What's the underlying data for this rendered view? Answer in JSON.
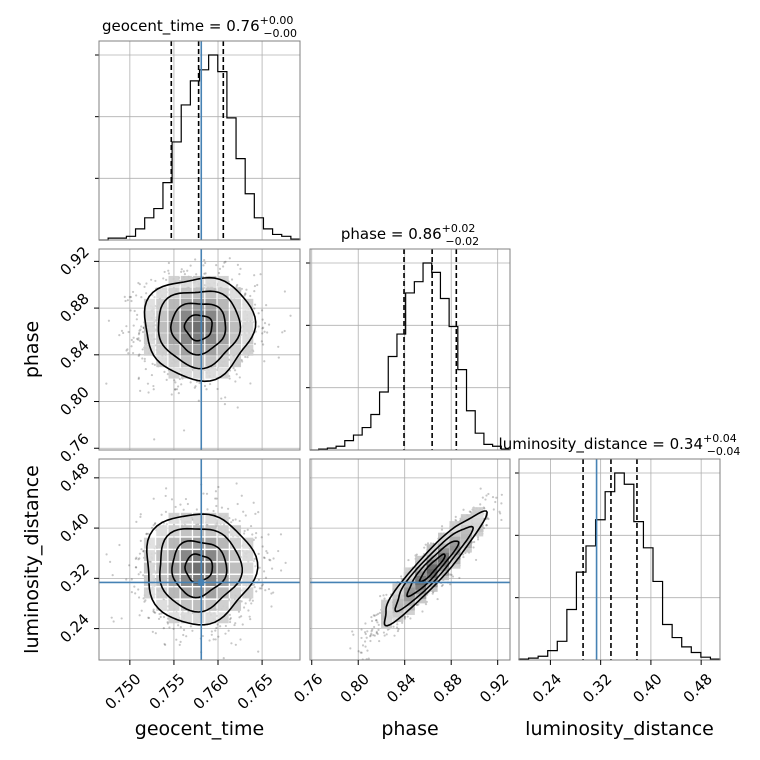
{
  "chart_data": {
    "type": "corner",
    "parameters": [
      "geocent_time",
      "phase",
      "luminosity_distance"
    ],
    "titles": {
      "geocent_time": {
        "name": "geocent_time",
        "median": "0.76",
        "plus": "+0.00",
        "minus": "−0.00"
      },
      "phase": {
        "name": "phase",
        "median": "0.86",
        "plus": "+0.02",
        "minus": "−0.02"
      },
      "luminosity_distance": {
        "name": "luminosity_distance",
        "median": "0.34",
        "plus": "+0.04",
        "minus": "−0.04"
      }
    },
    "ranges": {
      "geocent_time": [
        0.7465,
        0.7693
      ],
      "phase": [
        0.7585,
        0.9306
      ],
      "luminosity_distance": [
        0.19,
        0.51
      ]
    },
    "ticks": {
      "geocent_time": [
        0.75,
        0.755,
        0.76,
        0.765
      ],
      "geocent_time_labels": [
        "0.750",
        "0.755",
        "0.760",
        "0.765"
      ],
      "phase": [
        0.76,
        0.8,
        0.84,
        0.88,
        0.92
      ],
      "phase_labels": [
        "0.76",
        "0.80",
        "0.84",
        "0.88",
        "0.92"
      ],
      "luminosity_distance": [
        0.24,
        0.32,
        0.4,
        0.48
      ],
      "luminosity_distance_labels": [
        "0.24",
        "0.32",
        "0.40",
        "0.48"
      ]
    },
    "truths": {
      "geocent_time": 0.7581,
      "phase": null,
      "luminosity_distance": 0.3135
    },
    "quantiles": {
      "geocent_time": [
        0.7547,
        0.7578,
        0.7606
      ],
      "phase": [
        0.8394,
        0.8636,
        0.8844
      ],
      "luminosity_distance": [
        0.292,
        0.3364,
        0.3778
      ]
    },
    "histograms": {
      "geocent_time": {
        "range": [
          0.7465,
          0.7693
        ],
        "counts": [
          0,
          0.01,
          0.01,
          0.02,
          0.06,
          0.12,
          0.17,
          0.31,
          0.53,
          0.73,
          0.86,
          0.92,
          1.0,
          0.91,
          0.66,
          0.44,
          0.25,
          0.12,
          0.06,
          0.03,
          0.02,
          0.005
        ]
      },
      "phase": {
        "range": [
          0.7585,
          0.9306
        ],
        "counts": [
          0,
          0.005,
          0.01,
          0.02,
          0.05,
          0.08,
          0.12,
          0.19,
          0.31,
          0.5,
          0.62,
          0.84,
          0.9,
          1.0,
          0.95,
          0.81,
          0.66,
          0.43,
          0.21,
          0.09,
          0.03,
          0.02,
          0.005
        ]
      },
      "luminosity_distance": {
        "range": [
          0.19,
          0.51
        ],
        "counts": [
          0.005,
          0.01,
          0.02,
          0.05,
          0.1,
          0.27,
          0.47,
          0.61,
          0.75,
          0.9,
          1.0,
          0.94,
          0.74,
          0.6,
          0.42,
          0.19,
          0.12,
          0.07,
          0.04,
          0.015,
          0.005
        ]
      }
    },
    "pairs": [
      {
        "x": "geocent_time",
        "y": "phase",
        "mean": [
          0.7578,
          0.8636
        ],
        "sd": [
          0.0031,
          0.0218
        ],
        "rho": 0.0
      },
      {
        "x": "geocent_time",
        "y": "luminosity_distance",
        "mean": [
          0.7578,
          0.3364
        ],
        "sd": [
          0.0031,
          0.044
        ],
        "rho": 0.0
      },
      {
        "x": "phase",
        "y": "luminosity_distance",
        "mean": [
          0.8636,
          0.3364
        ],
        "sd": [
          0.0218,
          0.044
        ],
        "rho": 0.93
      }
    ],
    "grid": true,
    "colors": {
      "truth": "#4682b4",
      "hist": "#000000",
      "grid": "#b0b0b0",
      "quantile": "#000000"
    }
  }
}
